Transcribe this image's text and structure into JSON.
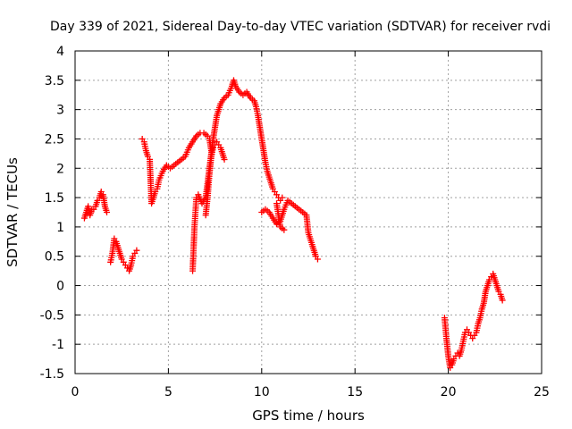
{
  "chart_data": {
    "type": "scatter",
    "title": "Day 339 of 2021, Sidereal Day-to-day VTEC variation (SDTVAR) for receiver rvdi",
    "xlabel": "GPS time / hours",
    "ylabel": "SDTVAR / TECUs",
    "xlim": [
      0,
      25
    ],
    "ylim": [
      -1.5,
      4
    ],
    "xticks": [
      "0",
      "5",
      "10",
      "15",
      "20",
      "25"
    ],
    "xtick_values": [
      0,
      5,
      10,
      15,
      20,
      25
    ],
    "yticks": [
      "-1.5",
      "-1",
      "-0.5",
      "0",
      "0.5",
      "1",
      "1.5",
      "2",
      "2.5",
      "3",
      "3.5",
      "4"
    ],
    "ytick_values": [
      -1.5,
      -1,
      -0.5,
      0,
      0.5,
      1,
      1.5,
      2,
      2.5,
      3,
      3.5,
      4
    ],
    "grid": true,
    "marker": "plus",
    "color": "#ff0000",
    "series": [
      {
        "name": "seg1",
        "x": [
          0.5,
          0.6,
          0.7,
          0.8,
          0.9,
          1.0,
          1.1,
          1.2,
          1.3,
          1.4,
          1.5,
          1.6,
          1.7
        ],
        "y": [
          1.15,
          1.25,
          1.35,
          1.2,
          1.3,
          1.3,
          1.35,
          1.45,
          1.5,
          1.6,
          1.55,
          1.35,
          1.25
        ]
      },
      {
        "name": "seg2",
        "x": [
          1.9,
          2.0,
          2.1,
          2.2,
          2.3,
          2.4,
          2.5,
          2.6,
          2.7,
          2.8,
          2.9,
          3.0,
          3.1,
          3.2,
          3.3
        ],
        "y": [
          0.4,
          0.55,
          0.8,
          0.75,
          0.65,
          0.55,
          0.45,
          0.4,
          0.35,
          0.3,
          0.25,
          0.35,
          0.5,
          0.55,
          0.6
        ]
      },
      {
        "name": "seg3",
        "x": [
          3.6,
          3.7,
          3.8,
          3.9,
          4.0,
          4.1,
          4.2,
          4.3,
          4.4,
          4.5,
          4.7,
          4.9,
          5.1,
          5.3,
          5.5,
          5.7,
          5.9,
          6.1,
          6.3,
          6.5,
          6.7,
          6.9,
          7.1,
          7.2,
          7.3
        ],
        "y": [
          2.5,
          2.45,
          2.3,
          2.2,
          2.15,
          1.4,
          1.5,
          1.6,
          1.65,
          1.8,
          1.95,
          2.05,
          2.0,
          2.05,
          2.1,
          2.15,
          2.2,
          2.35,
          2.45,
          2.55,
          2.6,
          2.6,
          2.55,
          2.5,
          2.3
        ]
      },
      {
        "name": "seg4",
        "x": [
          6.3,
          6.4,
          6.5,
          6.6,
          6.8,
          7.0,
          7.2,
          7.4,
          7.6,
          7.8,
          8.0,
          8.2,
          8.4,
          8.5,
          8.6,
          8.8,
          9.0,
          9.2,
          9.4,
          9.6,
          9.7,
          9.8,
          9.9,
          10.0,
          10.1,
          10.2,
          10.3,
          10.4,
          10.5,
          10.6,
          10.7,
          10.8,
          10.9,
          11.0,
          11.1
        ],
        "y": [
          0.25,
          1.0,
          1.5,
          1.55,
          1.4,
          1.5,
          2.0,
          2.5,
          2.9,
          3.1,
          3.2,
          3.25,
          3.4,
          3.5,
          3.4,
          3.3,
          3.25,
          3.3,
          3.2,
          3.15,
          3.05,
          2.9,
          2.7,
          2.5,
          2.3,
          2.1,
          1.95,
          1.85,
          1.75,
          1.65,
          1.6,
          1.55,
          1.5,
          1.45,
          1.5
        ]
      },
      {
        "name": "seg5",
        "x": [
          7.0,
          7.1,
          7.2,
          7.3,
          7.4,
          7.5,
          7.6,
          7.7,
          7.8,
          7.9,
          8.0
        ],
        "y": [
          1.2,
          1.5,
          1.9,
          2.2,
          2.35,
          2.4,
          2.45,
          2.4,
          2.35,
          2.25,
          2.15
        ]
      },
      {
        "name": "seg6",
        "x": [
          10.0,
          10.2,
          10.4,
          10.6,
          10.8,
          11.0,
          11.2,
          11.4,
          11.6,
          11.8,
          12.0,
          12.2,
          12.4,
          12.5,
          12.6,
          12.7,
          12.8,
          12.9,
          13.0
        ],
        "y": [
          1.25,
          1.3,
          1.25,
          1.15,
          1.05,
          1.1,
          1.3,
          1.45,
          1.4,
          1.35,
          1.3,
          1.25,
          1.2,
          0.9,
          0.8,
          0.7,
          0.6,
          0.5,
          0.45
        ]
      },
      {
        "name": "seg7",
        "x": [
          10.8,
          11.0,
          11.2
        ],
        "y": [
          1.4,
          1.0,
          0.95
        ]
      },
      {
        "name": "seg8",
        "x": [
          19.8,
          19.9,
          20.0,
          20.1,
          20.2,
          20.3,
          20.4,
          20.5,
          20.6,
          20.7,
          20.8,
          20.9,
          21.0,
          21.1,
          21.2,
          21.3,
          21.4,
          21.5,
          21.6,
          21.7,
          21.8,
          21.9,
          22.0,
          22.1,
          22.2,
          22.3,
          22.4,
          22.5,
          22.6,
          22.7,
          22.8,
          22.9
        ],
        "y": [
          -0.55,
          -0.9,
          -1.2,
          -1.4,
          -1.35,
          -1.25,
          -1.2,
          -1.15,
          -1.2,
          -1.1,
          -0.95,
          -0.8,
          -0.75,
          -0.8,
          -0.85,
          -0.9,
          -0.85,
          -0.8,
          -0.65,
          -0.55,
          -0.4,
          -0.3,
          -0.1,
          0.0,
          0.1,
          0.15,
          0.2,
          0.1,
          0.0,
          -0.1,
          -0.15,
          -0.25
        ]
      }
    ]
  }
}
